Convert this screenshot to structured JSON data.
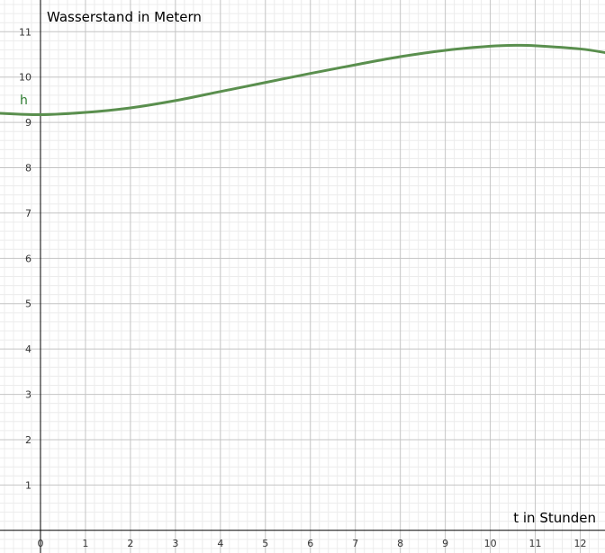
{
  "chart_data": {
    "type": "line",
    "title": "",
    "xlabel": "t in Stunden",
    "ylabel": "Wasserstand in Metern",
    "xlim": [
      -0.9,
      12.55
    ],
    "ylim": [
      -0.5,
      11.7
    ],
    "grid": true,
    "minor_grid": true,
    "x_ticks": [
      0,
      1,
      2,
      3,
      4,
      5,
      6,
      7,
      8,
      9,
      10,
      11,
      12
    ],
    "y_ticks": [
      1,
      2,
      3,
      4,
      5,
      6,
      7,
      8,
      9,
      10,
      11
    ],
    "series": [
      {
        "name": "h",
        "color": "#5a8f4e",
        "x": [
          -0.9,
          0,
          1,
          2,
          3,
          4,
          5,
          6,
          7,
          8,
          9,
          10,
          10.6,
          11,
          12,
          12.55
        ],
        "y": [
          9.2,
          9.17,
          9.22,
          9.32,
          9.48,
          9.68,
          9.88,
          10.08,
          10.27,
          10.45,
          10.59,
          10.68,
          10.7,
          10.69,
          10.62,
          10.54
        ]
      }
    ]
  }
}
